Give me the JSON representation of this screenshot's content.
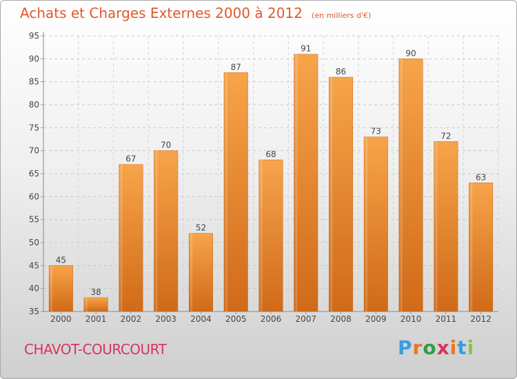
{
  "title": "Achats et Charges Externes 2000 à 2012",
  "unit_label": "(en milliers d'€)",
  "location": "CHAVOT-COURCOURT",
  "brand": {
    "letters": [
      "P",
      "r",
      "o",
      "x",
      "i",
      "t",
      "i"
    ],
    "colors": [
      "#3b9de0",
      "#e87722",
      "#2f9f3f",
      "#d8335f",
      "#e87722",
      "#3b9de0",
      "#8cc63f"
    ]
  },
  "colors": {
    "bar_top": "#f7a44a",
    "bar_bottom": "#d06a18",
    "title": "#e0592b",
    "location": "#d8335f"
  },
  "chart_data": {
    "type": "bar",
    "categories": [
      "2000",
      "2001",
      "2002",
      "2003",
      "2004",
      "2005",
      "2006",
      "2007",
      "2008",
      "2009",
      "2010",
      "2011",
      "2012"
    ],
    "values": [
      45,
      38,
      67,
      70,
      52,
      87,
      68,
      91,
      86,
      73,
      90,
      72,
      63
    ],
    "ylim": [
      35,
      95
    ],
    "yticks": [
      35,
      40,
      45,
      50,
      55,
      60,
      65,
      70,
      75,
      80,
      85,
      90,
      95
    ],
    "grid": true,
    "data_labels": true
  }
}
